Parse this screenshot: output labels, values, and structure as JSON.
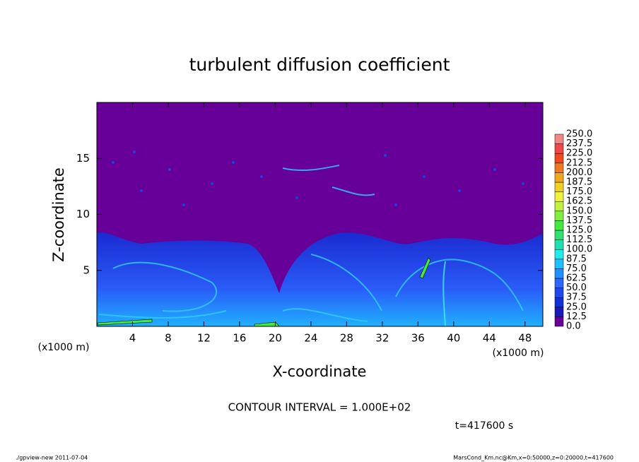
{
  "chart_data": {
    "type": "contour",
    "title": "turbulent diffusion coefficient",
    "xlabel": "X-coordinate",
    "ylabel": "Z-coordinate",
    "xunit": "(x1000 m)",
    "yunit": "(x1000 m)",
    "xlim": [
      0,
      50
    ],
    "xticks": [
      4,
      8,
      12,
      16,
      20,
      24,
      28,
      32,
      36,
      40,
      44,
      48
    ],
    "ylim": [
      0,
      20
    ],
    "yticks": [
      5,
      10,
      15
    ],
    "colorbar": {
      "levels": [
        {
          "value": 0,
          "label": "0.0"
        },
        {
          "value": 12.5,
          "label": "12.5"
        },
        {
          "value": 25,
          "label": "25.0"
        },
        {
          "value": 37.5,
          "label": "37.5"
        },
        {
          "value": 50,
          "label": "50.0"
        },
        {
          "value": 62.5,
          "label": "62.5"
        },
        {
          "value": 75,
          "label": "75.0"
        },
        {
          "value": 87.5,
          "label": "87.5"
        },
        {
          "value": 100,
          "label": "100.0"
        },
        {
          "value": 112.5,
          "label": "112.5"
        },
        {
          "value": 125,
          "label": "125.0"
        },
        {
          "value": 137.5,
          "label": "137.5"
        },
        {
          "value": 150,
          "label": "150.0"
        },
        {
          "value": 162.5,
          "label": "162.5"
        },
        {
          "value": 175,
          "label": "175.0"
        },
        {
          "value": 187.5,
          "label": "187.5"
        },
        {
          "value": 200,
          "label": "200.0"
        },
        {
          "value": 212.5,
          "label": "212.5"
        },
        {
          "value": 225,
          "label": "225.0"
        },
        {
          "value": 237.5,
          "label": "237.5"
        },
        {
          "value": 250,
          "label": "250.0"
        }
      ],
      "colors": [
        "#660099",
        "#1a1ab8",
        "#1030d8",
        "#2048f0",
        "#2a66ff",
        "#2090ff",
        "#20c0ff",
        "#20ecf0",
        "#20e0b0",
        "#30e070",
        "#40ec40",
        "#80f040",
        "#c0f040",
        "#f0f040",
        "#f0d020",
        "#f0a820",
        "#f07820",
        "#f04a20",
        "#f04848",
        "#f08888"
      ]
    },
    "contour_interval": "CONTOUR INTERVAL = 1.000E+02",
    "time": "t=417600 s",
    "footer_left": "./gpview-new  2011-07-04",
    "footer_right": "MarsCond_Km.nc@Km,x=0:50000,z=0:20000,t=417600"
  }
}
